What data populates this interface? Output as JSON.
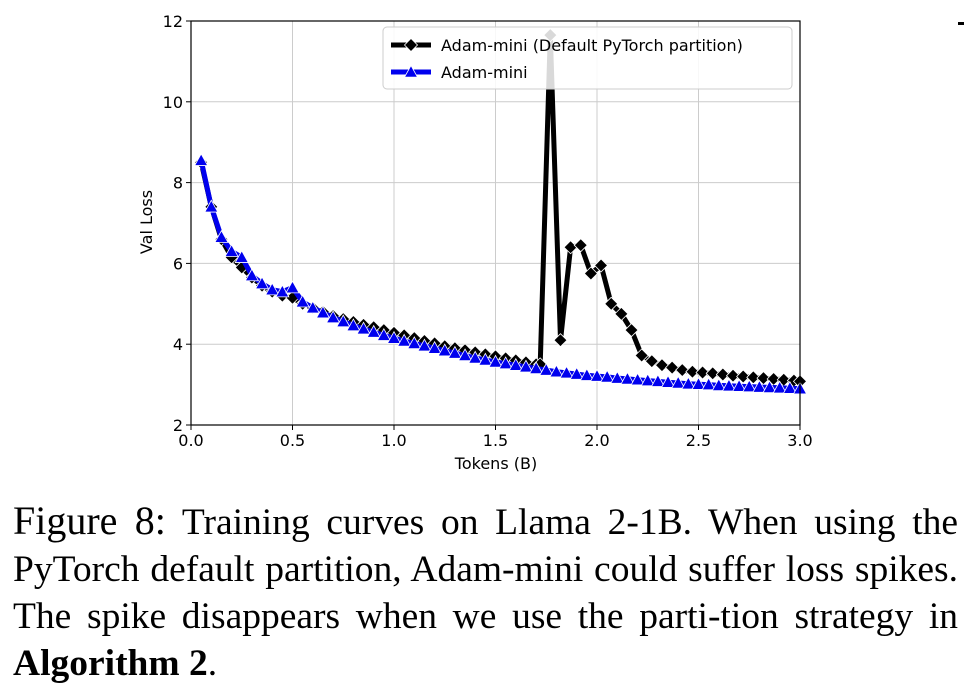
{
  "chart_data": {
    "type": "line",
    "xlabel": "Tokens (B)",
    "ylabel": "Val Loss",
    "xlim": [
      0.0,
      3.0
    ],
    "ylim": [
      2,
      12
    ],
    "xticks": [
      "0.0",
      "0.5",
      "1.0",
      "1.5",
      "2.0",
      "2.5",
      "3.0"
    ],
    "yticks": [
      "2",
      "4",
      "6",
      "8",
      "10",
      "12"
    ],
    "grid": true,
    "legend_position": "top-right",
    "series": [
      {
        "name": "Adam-mini (Default PyTorch partition)",
        "color": "#000000",
        "marker": "diamond",
        "x": [
          0.05,
          0.1,
          0.15,
          0.2,
          0.25,
          0.3,
          0.35,
          0.4,
          0.45,
          0.5,
          0.55,
          0.6,
          0.65,
          0.7,
          0.75,
          0.8,
          0.85,
          0.9,
          0.95,
          1.0,
          1.05,
          1.1,
          1.15,
          1.2,
          1.25,
          1.3,
          1.35,
          1.4,
          1.45,
          1.5,
          1.55,
          1.6,
          1.65,
          1.7,
          1.72,
          1.77,
          1.82,
          1.87,
          1.92,
          1.97,
          2.02,
          2.07,
          2.12,
          2.17,
          2.22,
          2.27,
          2.32,
          2.37,
          2.42,
          2.47,
          2.52,
          2.57,
          2.62,
          2.67,
          2.72,
          2.77,
          2.82,
          2.87,
          2.92,
          2.97,
          3.0
        ],
        "y": [
          8.5,
          7.4,
          6.6,
          6.15,
          5.9,
          5.65,
          5.45,
          5.3,
          5.2,
          5.15,
          5.0,
          4.9,
          4.8,
          4.7,
          4.62,
          4.55,
          4.48,
          4.42,
          4.35,
          4.28,
          4.22,
          4.15,
          4.08,
          4.02,
          3.95,
          3.9,
          3.85,
          3.8,
          3.75,
          3.7,
          3.65,
          3.6,
          3.55,
          3.5,
          3.5,
          11.65,
          4.1,
          6.4,
          6.45,
          5.75,
          5.95,
          5.0,
          4.75,
          4.35,
          3.72,
          3.58,
          3.48,
          3.42,
          3.36,
          3.32,
          3.3,
          3.28,
          3.25,
          3.22,
          3.2,
          3.18,
          3.16,
          3.14,
          3.12,
          3.1,
          3.08
        ]
      },
      {
        "name": "Adam-mini",
        "color": "#0000ee",
        "marker": "triangle",
        "x": [
          0.05,
          0.1,
          0.15,
          0.2,
          0.25,
          0.3,
          0.35,
          0.4,
          0.45,
          0.5,
          0.55,
          0.6,
          0.65,
          0.7,
          0.75,
          0.8,
          0.85,
          0.9,
          0.95,
          1.0,
          1.05,
          1.1,
          1.15,
          1.2,
          1.25,
          1.3,
          1.35,
          1.4,
          1.45,
          1.5,
          1.55,
          1.6,
          1.65,
          1.7,
          1.75,
          1.8,
          1.85,
          1.9,
          1.95,
          2.0,
          2.05,
          2.1,
          2.15,
          2.2,
          2.25,
          2.3,
          2.35,
          2.4,
          2.45,
          2.5,
          2.55,
          2.6,
          2.65,
          2.7,
          2.75,
          2.8,
          2.85,
          2.9,
          2.95,
          3.0
        ],
        "y": [
          8.55,
          7.4,
          6.65,
          6.3,
          6.15,
          5.7,
          5.5,
          5.35,
          5.3,
          5.4,
          5.05,
          4.9,
          4.78,
          4.66,
          4.56,
          4.46,
          4.38,
          4.3,
          4.22,
          4.15,
          4.08,
          4.02,
          3.96,
          3.9,
          3.84,
          3.78,
          3.72,
          3.66,
          3.61,
          3.56,
          3.52,
          3.48,
          3.44,
          3.4,
          3.36,
          3.32,
          3.29,
          3.26,
          3.23,
          3.21,
          3.19,
          3.16,
          3.14,
          3.12,
          3.1,
          3.08,
          3.06,
          3.04,
          3.02,
          3.01,
          3.0,
          2.98,
          2.97,
          2.96,
          2.95,
          2.94,
          2.93,
          2.92,
          2.91,
          2.9
        ]
      }
    ]
  },
  "caption": {
    "label": "Figure 8:",
    "text": " Training curves on Llama 2-1B. When using the PyTorch default partition, Adam-mini could suffer loss spikes. The spike disappears when we use the parti-tion strategy in ",
    "bold": "Algorithm 2",
    "end": "."
  }
}
